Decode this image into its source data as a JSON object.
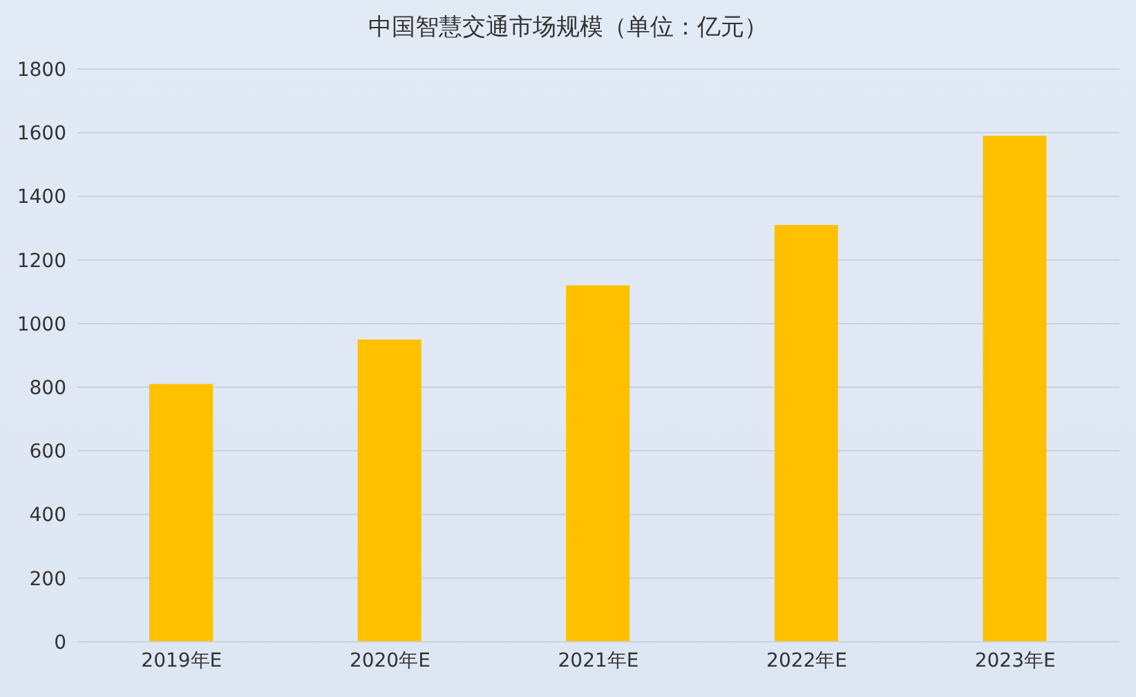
{
  "chart_data": {
    "type": "bar",
    "title": "中国智慧交通市场规模（单位：亿元）",
    "categories": [
      "2019年E",
      "2020年E",
      "2021年E",
      "2022年E",
      "2023年E"
    ],
    "values": [
      810,
      950,
      1120,
      1310,
      1590
    ],
    "color": "#ffc000",
    "ylim": [
      0,
      1800
    ],
    "yticks": [
      0,
      200,
      400,
      600,
      800,
      1000,
      1200,
      1400,
      1600,
      1800
    ],
    "grid": "y"
  }
}
